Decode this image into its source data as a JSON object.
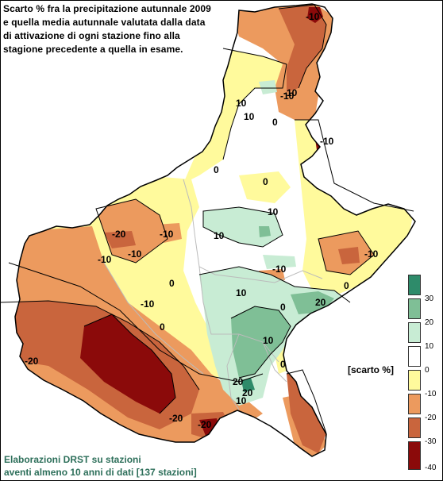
{
  "title": {
    "line1": "Scarto % fra la precipitazione autunnale 2009",
    "line2": "e quella media autunnale valutata dalla data",
    "line3": "di attivazione di ogni stazione fino alla",
    "line4": "stagione precedente a quella in esame."
  },
  "credit": {
    "line1": "Elaborazioni DRST su stazioni",
    "line2": "aventi almeno 10 anni di dati [137 stazioni]"
  },
  "legend": {
    "title": "[scarto %]",
    "classes": [
      {
        "label": "30",
        "color": "#2e8b6a"
      },
      {
        "label": "20",
        "color": "#7fbf96"
      },
      {
        "label": "10",
        "color": "#c8ecd4"
      },
      {
        "label": "0",
        "color": "#ffffff"
      },
      {
        "label": "-10",
        "color": "#fffa9c"
      },
      {
        "label": "-20",
        "color": "#ec9a5e"
      },
      {
        "label": "-30",
        "color": "#c9653d"
      },
      {
        "label": "-40",
        "color": "#8b0a0a"
      }
    ]
  },
  "contour_labels": [
    "10",
    "-10",
    "0",
    "10",
    "-10",
    "-10",
    "10",
    "0",
    "0",
    "0",
    "-10",
    "10",
    "-10",
    "10",
    "0",
    "20",
    "-10",
    "0",
    "0",
    "-20",
    "-20",
    "20",
    "20",
    "10",
    "0",
    "-10",
    "10",
    "-20",
    "-10",
    "-10",
    "-20",
    "-10"
  ],
  "colors": {
    "outline": "#000000",
    "text": "#000000",
    "credit": "#2d6f5a"
  }
}
